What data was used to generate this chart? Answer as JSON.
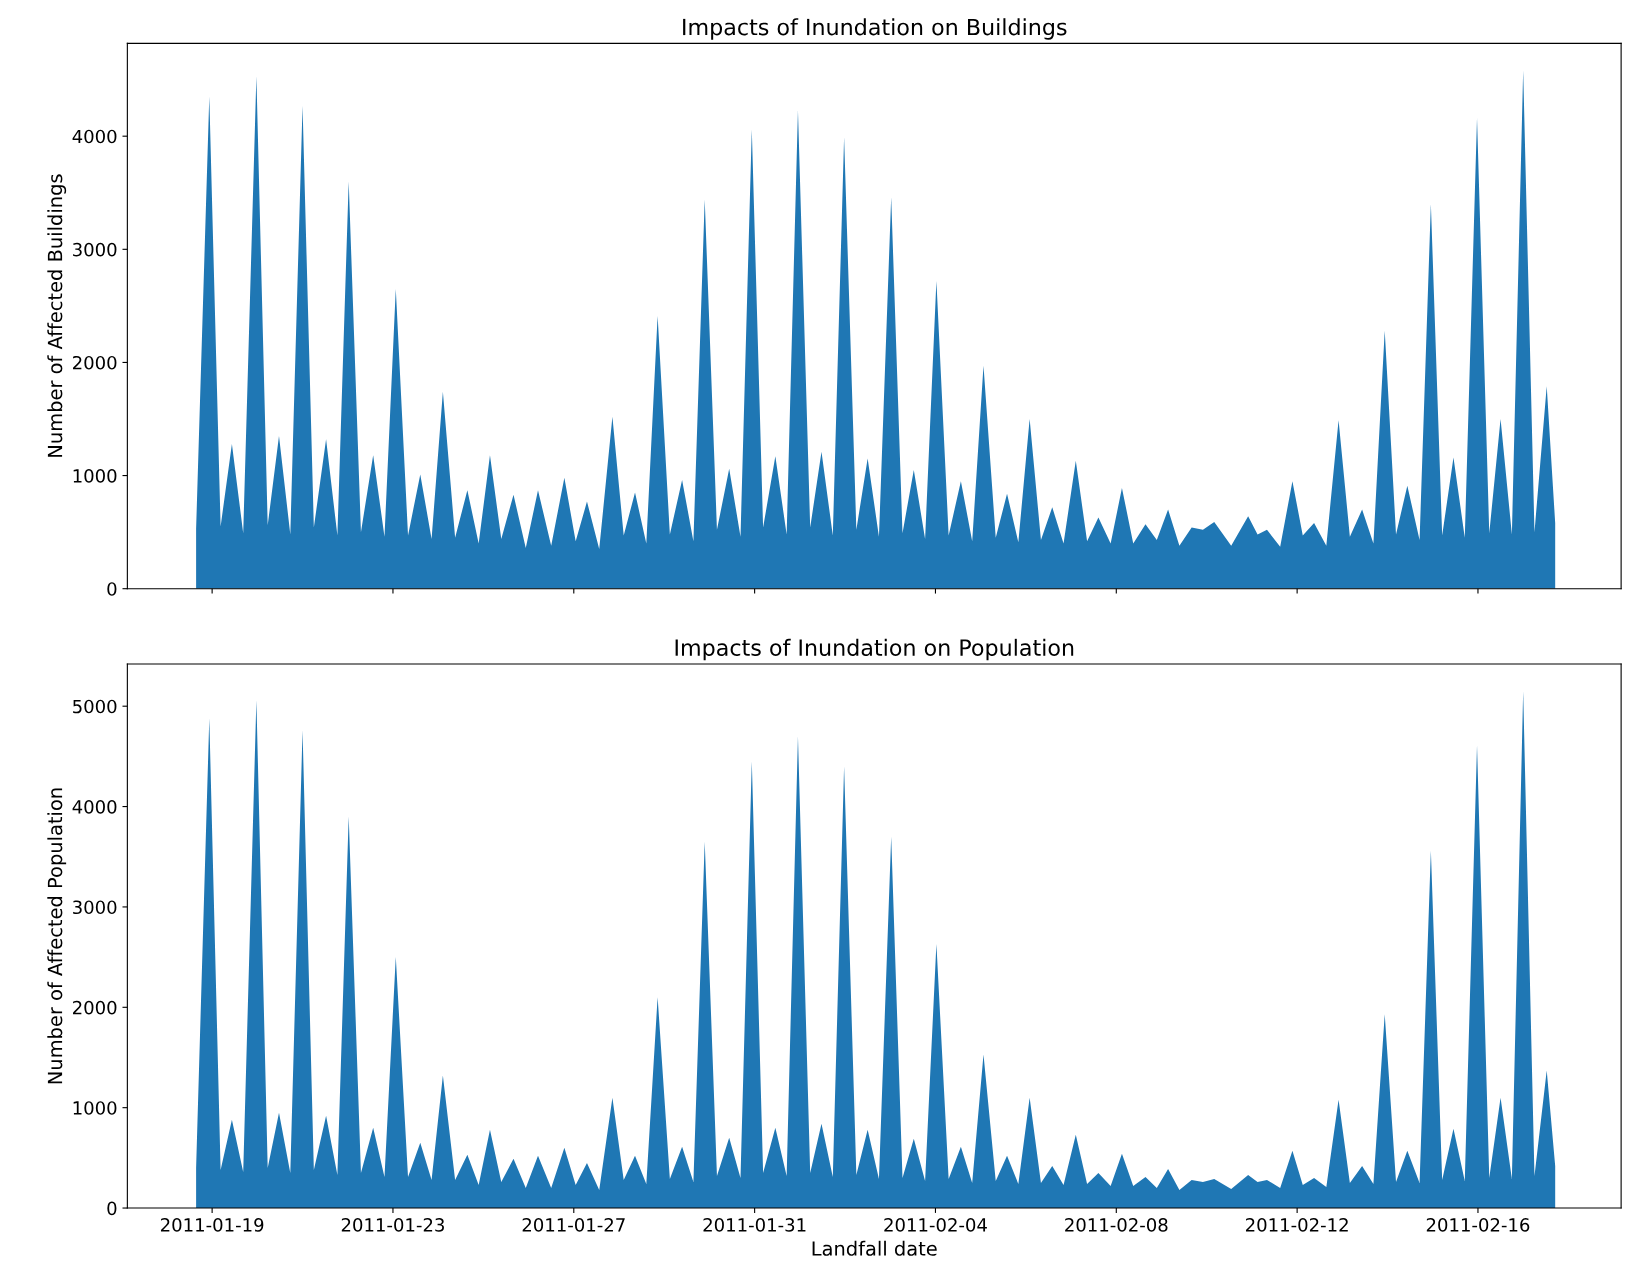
{
  "chart_data": [
    {
      "type": "area",
      "title": "Impacts of Inundation on Buildings",
      "ylabel": "Number of Affected Buildings",
      "x": [
        "2011-01-18T15:30",
        "2011-01-18T22:30",
        "2011-01-19T04:30",
        "2011-01-19T10:30",
        "2011-01-19T16:30",
        "2011-01-19T23:30",
        "2011-01-20T05:30",
        "2011-01-20T11:30",
        "2011-01-20T17:30",
        "2011-01-21T00:00",
        "2011-01-21T06:00",
        "2011-01-21T12:30",
        "2011-01-21T18:30",
        "2011-01-22T00:30",
        "2011-01-22T07:00",
        "2011-01-22T13:30",
        "2011-01-22T19:30",
        "2011-01-23T01:30",
        "2011-01-23T08:00",
        "2011-01-23T14:30",
        "2011-01-23T20:30",
        "2011-01-24T02:30",
        "2011-01-24T09:00",
        "2011-01-24T15:30",
        "2011-01-24T21:30",
        "2011-01-25T03:30",
        "2011-01-25T09:30",
        "2011-01-25T16:00",
        "2011-01-25T22:30",
        "2011-01-26T05:00",
        "2011-01-26T12:00",
        "2011-01-26T19:00",
        "2011-01-27T01:00",
        "2011-01-27T07:00",
        "2011-01-27T13:30",
        "2011-01-27T20:30",
        "2011-01-28T02:30",
        "2011-01-28T08:30",
        "2011-01-28T14:30",
        "2011-01-28T20:30",
        "2011-01-29T03:00",
        "2011-01-29T09:30",
        "2011-01-29T15:30",
        "2011-01-29T21:30",
        "2011-01-30T04:00",
        "2011-01-30T10:30",
        "2011-01-30T16:30",
        "2011-01-30T22:30",
        "2011-01-31T04:30",
        "2011-01-31T11:00",
        "2011-01-31T17:00",
        "2011-01-31T23:00",
        "2011-02-01T05:30",
        "2011-02-01T11:30",
        "2011-02-01T17:30",
        "2011-02-01T23:30",
        "2011-02-02T06:00",
        "2011-02-02T12:00",
        "2011-02-02T18:00",
        "2011-02-03T00:30",
        "2011-02-03T06:30",
        "2011-02-03T12:30",
        "2011-02-03T18:30",
        "2011-02-04T00:30",
        "2011-02-04T07:00",
        "2011-02-04T13:30",
        "2011-02-04T19:30",
        "2011-02-05T01:30",
        "2011-02-05T08:00",
        "2011-02-05T14:00",
        "2011-02-05T20:00",
        "2011-02-06T02:00",
        "2011-02-06T08:00",
        "2011-02-06T14:00",
        "2011-02-06T20:00",
        "2011-02-07T02:30",
        "2011-02-07T08:30",
        "2011-02-07T14:30",
        "2011-02-07T21:00",
        "2011-02-08T03:00",
        "2011-02-08T09:00",
        "2011-02-08T15:30",
        "2011-02-08T21:30",
        "2011-02-09T03:30",
        "2011-02-09T09:30",
        "2011-02-09T16:00",
        "2011-02-09T22:00",
        "2011-02-10T04:00",
        "2011-02-10T13:00",
        "2011-02-10T22:00",
        "2011-02-11T03:00",
        "2011-02-11T08:00",
        "2011-02-11T15:00",
        "2011-02-11T21:30",
        "2011-02-12T03:00",
        "2011-02-12T09:00",
        "2011-02-12T15:30",
        "2011-02-12T22:00",
        "2011-02-13T04:00",
        "2011-02-13T10:30",
        "2011-02-13T16:30",
        "2011-02-13T22:30",
        "2011-02-14T04:30",
        "2011-02-14T10:30",
        "2011-02-14T17:00",
        "2011-02-14T23:00",
        "2011-02-15T05:00",
        "2011-02-15T11:00",
        "2011-02-15T17:00",
        "2011-02-15T23:30",
        "2011-02-16T06:00",
        "2011-02-16T12:00",
        "2011-02-16T18:00",
        "2011-02-17T00:00",
        "2011-02-17T06:00",
        "2011-02-17T12:30",
        "2011-02-17T17:00"
      ],
      "series": [
        {
          "color": "#1f77b4",
          "values": [
            530,
            4350,
            550,
            1280,
            490,
            4530,
            560,
            1350,
            480,
            4270,
            540,
            1320,
            470,
            3600,
            500,
            1180,
            460,
            2650,
            470,
            1010,
            440,
            1740,
            450,
            870,
            400,
            1180,
            440,
            830,
            360,
            870,
            380,
            980,
            420,
            770,
            350,
            1520,
            470,
            850,
            400,
            2410,
            480,
            960,
            420,
            3440,
            520,
            1060,
            460,
            4060,
            540,
            1170,
            480,
            4230,
            540,
            1210,
            470,
            3990,
            520,
            1150,
            460,
            3460,
            490,
            1050,
            440,
            2720,
            470,
            950,
            420,
            1970,
            450,
            840,
            410,
            1500,
            430,
            720,
            400,
            1130,
            420,
            630,
            400,
            890,
            400,
            570,
            430,
            700,
            380,
            540,
            520,
            590,
            380,
            640,
            480,
            520,
            370,
            950,
            470,
            580,
            380,
            1490,
            460,
            700,
            400,
            2280,
            480,
            910,
            430,
            3400,
            470,
            1160,
            450,
            4160,
            490,
            1500,
            480,
            4580,
            500,
            1790,
            580
          ]
        }
      ],
      "xlim": [
        "2011-01-17T03:00",
        "2011-02-19T04:00"
      ],
      "xticks": [
        "2011-01-19",
        "2011-01-23",
        "2011-01-27",
        "2011-01-31",
        "2011-02-04",
        "2011-02-08",
        "2011-02-12",
        "2011-02-16"
      ],
      "ylim": [
        0,
        4820
      ],
      "yticks": [
        0,
        1000,
        2000,
        3000,
        4000
      ],
      "tick_labels": "y",
      "grid": false
    },
    {
      "type": "area",
      "title": "Impacts of Inundation on Population",
      "ylabel": "Number of Affected Population",
      "xlabel": "Landfall date",
      "x": [
        "2011-01-18T15:30",
        "2011-01-18T22:30",
        "2011-01-19T04:30",
        "2011-01-19T10:30",
        "2011-01-19T16:30",
        "2011-01-19T23:30",
        "2011-01-20T05:30",
        "2011-01-20T11:30",
        "2011-01-20T17:30",
        "2011-01-21T00:00",
        "2011-01-21T06:00",
        "2011-01-21T12:30",
        "2011-01-21T18:30",
        "2011-01-22T00:30",
        "2011-01-22T07:00",
        "2011-01-22T13:30",
        "2011-01-22T19:30",
        "2011-01-23T01:30",
        "2011-01-23T08:00",
        "2011-01-23T14:30",
        "2011-01-23T20:30",
        "2011-01-24T02:30",
        "2011-01-24T09:00",
        "2011-01-24T15:30",
        "2011-01-24T21:30",
        "2011-01-25T03:30",
        "2011-01-25T09:30",
        "2011-01-25T16:00",
        "2011-01-25T22:30",
        "2011-01-26T05:00",
        "2011-01-26T12:00",
        "2011-01-26T19:00",
        "2011-01-27T01:00",
        "2011-01-27T07:00",
        "2011-01-27T13:30",
        "2011-01-27T20:30",
        "2011-01-28T02:30",
        "2011-01-28T08:30",
        "2011-01-28T14:30",
        "2011-01-28T20:30",
        "2011-01-29T03:00",
        "2011-01-29T09:30",
        "2011-01-29T15:30",
        "2011-01-29T21:30",
        "2011-01-30T04:00",
        "2011-01-30T10:30",
        "2011-01-30T16:30",
        "2011-01-30T22:30",
        "2011-01-31T04:30",
        "2011-01-31T11:00",
        "2011-01-31T17:00",
        "2011-01-31T23:00",
        "2011-02-01T05:30",
        "2011-02-01T11:30",
        "2011-02-01T17:30",
        "2011-02-01T23:30",
        "2011-02-02T06:00",
        "2011-02-02T12:00",
        "2011-02-02T18:00",
        "2011-02-03T00:30",
        "2011-02-03T06:30",
        "2011-02-03T12:30",
        "2011-02-03T18:30",
        "2011-02-04T00:30",
        "2011-02-04T07:00",
        "2011-02-04T13:30",
        "2011-02-04T19:30",
        "2011-02-05T01:30",
        "2011-02-05T08:00",
        "2011-02-05T14:00",
        "2011-02-05T20:00",
        "2011-02-06T02:00",
        "2011-02-06T08:00",
        "2011-02-06T14:00",
        "2011-02-06T20:00",
        "2011-02-07T02:30",
        "2011-02-07T08:30",
        "2011-02-07T14:30",
        "2011-02-07T21:00",
        "2011-02-08T03:00",
        "2011-02-08T09:00",
        "2011-02-08T15:30",
        "2011-02-08T21:30",
        "2011-02-09T03:30",
        "2011-02-09T09:30",
        "2011-02-09T16:00",
        "2011-02-09T22:00",
        "2011-02-10T04:00",
        "2011-02-10T13:00",
        "2011-02-10T22:00",
        "2011-02-11T03:00",
        "2011-02-11T08:00",
        "2011-02-11T15:00",
        "2011-02-11T21:30",
        "2011-02-12T03:00",
        "2011-02-12T09:00",
        "2011-02-12T15:30",
        "2011-02-12T22:00",
        "2011-02-13T04:00",
        "2011-02-13T10:30",
        "2011-02-13T16:30",
        "2011-02-13T22:30",
        "2011-02-14T04:30",
        "2011-02-14T10:30",
        "2011-02-14T17:00",
        "2011-02-14T23:00",
        "2011-02-15T05:00",
        "2011-02-15T11:00",
        "2011-02-15T17:00",
        "2011-02-15T23:30",
        "2011-02-16T06:00",
        "2011-02-16T12:00",
        "2011-02-16T18:00",
        "2011-02-17T00:00",
        "2011-02-17T06:00",
        "2011-02-17T12:30",
        "2011-02-17T17:00"
      ],
      "series": [
        {
          "color": "#1f77b4",
          "values": [
            400,
            4880,
            380,
            880,
            360,
            5060,
            400,
            950,
            350,
            4760,
            380,
            920,
            330,
            3900,
            350,
            800,
            310,
            2500,
            310,
            650,
            280,
            1320,
            280,
            530,
            230,
            780,
            260,
            490,
            200,
            520,
            200,
            600,
            230,
            450,
            180,
            1100,
            280,
            520,
            240,
            2100,
            290,
            610,
            260,
            3650,
            320,
            700,
            300,
            4450,
            350,
            800,
            320,
            4700,
            350,
            840,
            310,
            4400,
            330,
            780,
            290,
            3700,
            300,
            690,
            270,
            2630,
            290,
            610,
            250,
            1530,
            270,
            520,
            240,
            1100,
            250,
            420,
            230,
            730,
            240,
            350,
            220,
            540,
            220,
            310,
            200,
            390,
            180,
            280,
            260,
            290,
            190,
            330,
            260,
            280,
            200,
            570,
            230,
            300,
            210,
            1080,
            250,
            420,
            240,
            1930,
            260,
            570,
            250,
            3560,
            280,
            790,
            270,
            4610,
            300,
            1100,
            290,
            5150,
            320,
            1370,
            420
          ]
        }
      ],
      "xlim": [
        "2011-01-17T03:00",
        "2011-02-19T04:00"
      ],
      "xticks": [
        "2011-01-19",
        "2011-01-23",
        "2011-01-27",
        "2011-01-31",
        "2011-02-04",
        "2011-02-08",
        "2011-02-12",
        "2011-02-16"
      ],
      "ylim": [
        0,
        5420
      ],
      "yticks": [
        0,
        1000,
        2000,
        3000,
        4000,
        5000
      ],
      "grid": false
    }
  ]
}
